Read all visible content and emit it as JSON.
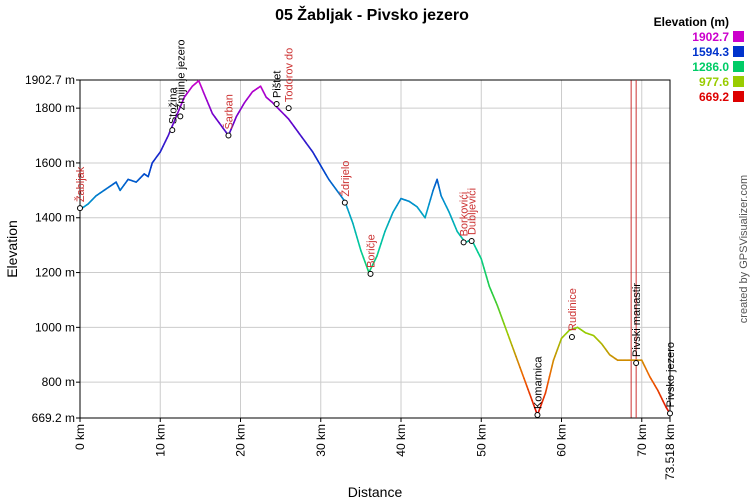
{
  "chart_data": {
    "type": "line",
    "title": "05 Žabljak - Pivsko jezero",
    "xlabel": "Distance",
    "ylabel": "Elevation",
    "credit": "created by GPSVisualizer.com",
    "xlim": [
      0,
      73.518
    ],
    "ylim": [
      669.2,
      1902.7
    ],
    "x_ticks": [
      "0 km",
      "10 km",
      "20 km",
      "30 km",
      "40 km",
      "50 km",
      "60 km",
      "70 km",
      "73.518 km"
    ],
    "x_tick_values": [
      0,
      10,
      20,
      30,
      40,
      50,
      60,
      70,
      73.518
    ],
    "y_ticks": [
      "669.2 m",
      "800 m",
      "1000 m",
      "1200 m",
      "1400 m",
      "1600 m",
      "1800 m",
      "1902.7 m"
    ],
    "y_tick_values": [
      669.2,
      800,
      1000,
      1200,
      1400,
      1600,
      1800,
      1902.7
    ],
    "legend": {
      "title": "Elevation (m)",
      "entries": [
        {
          "label": "1902.7",
          "color": "#cc00cc"
        },
        {
          "label": "1594.3",
          "color": "#0033cc"
        },
        {
          "label": "1286.0",
          "color": "#00cc66"
        },
        {
          "label": "977.6",
          "color": "#99cc00"
        },
        {
          "label": "669.2",
          "color": "#dd0000"
        }
      ]
    },
    "profile": {
      "x": [
        0,
        1,
        2,
        3,
        4,
        4.5,
        5,
        6,
        7,
        8,
        8.5,
        9,
        10,
        11,
        12,
        13,
        14,
        14.8,
        15.5,
        16.5,
        17.5,
        18.5,
        19.5,
        20.5,
        21.5,
        22.5,
        23.2,
        24,
        25,
        26,
        27,
        28,
        29,
        30,
        31,
        32,
        33,
        34,
        35,
        36,
        37,
        38,
        39,
        40,
        41,
        42,
        43,
        44,
        44.5,
        45,
        46,
        47,
        48,
        48.8,
        50,
        51,
        52,
        53,
        54,
        55,
        56,
        57,
        58,
        59,
        60,
        61,
        62,
        63,
        64,
        65,
        66,
        67,
        68,
        69,
        70,
        71,
        72,
        73,
        73.518
      ],
      "y": [
        1430,
        1450,
        1480,
        1500,
        1520,
        1530,
        1500,
        1540,
        1530,
        1560,
        1550,
        1600,
        1640,
        1700,
        1770,
        1840,
        1880,
        1900,
        1850,
        1780,
        1740,
        1700,
        1770,
        1820,
        1860,
        1880,
        1840,
        1820,
        1790,
        1760,
        1720,
        1680,
        1640,
        1590,
        1540,
        1500,
        1460,
        1380,
        1280,
        1200,
        1260,
        1350,
        1420,
        1470,
        1460,
        1440,
        1400,
        1500,
        1540,
        1480,
        1420,
        1350,
        1310,
        1320,
        1250,
        1150,
        1080,
        1000,
        920,
        840,
        760,
        680,
        760,
        880,
        960,
        990,
        1000,
        980,
        970,
        940,
        900,
        880,
        880,
        880,
        880,
        820,
        770,
        710,
        685
      ]
    },
    "waypoints": [
      {
        "name": "Žabljak",
        "x": 0,
        "y": 1435,
        "color": "#cc3333",
        "marker": true
      },
      {
        "name": "Stožina",
        "x": 11.5,
        "y": 1720,
        "color": "#000000",
        "marker": true
      },
      {
        "name": "Zmijinje jezero",
        "x": 12.5,
        "y": 1770,
        "color": "#000000",
        "marker": true
      },
      {
        "name": "Šarban",
        "x": 18.5,
        "y": 1700,
        "color": "#cc3333",
        "marker": true
      },
      {
        "name": "Pištet",
        "x": 24.5,
        "y": 1815,
        "color": "#000000",
        "marker": true
      },
      {
        "name": "Todorov do",
        "x": 26,
        "y": 1800,
        "color": "#cc3333",
        "marker": true
      },
      {
        "name": "Ždrijelo",
        "x": 33,
        "y": 1455,
        "color": "#cc3333",
        "marker": true
      },
      {
        "name": "Boričje",
        "x": 36.2,
        "y": 1195,
        "color": "#cc3333",
        "marker": true
      },
      {
        "name": "Borkovići",
        "x": 47.8,
        "y": 1310,
        "color": "#cc3333",
        "marker": true
      },
      {
        "name": "Dubljevići",
        "x": 48.8,
        "y": 1315,
        "color": "#cc3333",
        "marker": true
      },
      {
        "name": "Komarnica",
        "x": 57,
        "y": 680,
        "color": "#000000",
        "marker": true
      },
      {
        "name": "Rudinice",
        "x": 61.3,
        "y": 965,
        "color": "#cc3333",
        "marker": true
      },
      {
        "name": "Pivski manastir",
        "x": 69.3,
        "y": 870,
        "color": "#000000",
        "marker": true
      },
      {
        "name": "Pivsko jezero",
        "x": 73.518,
        "y": 686,
        "color": "#000000",
        "marker": true
      }
    ],
    "marker_line_x": 69.3,
    "grid": true
  }
}
